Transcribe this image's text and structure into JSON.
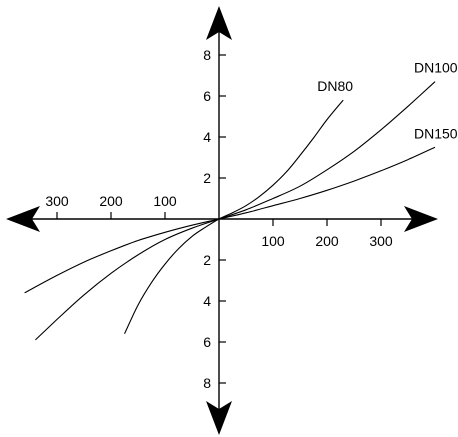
{
  "chart_data": {
    "type": "line",
    "title": "",
    "xlabel": "",
    "ylabel": "",
    "grid": false,
    "xlim": [
      -360,
      400
    ],
    "ylim": [
      -10,
      10
    ],
    "x_tick_labels_positive": [
      "100",
      "200",
      "300"
    ],
    "x_tick_labels_negative": [
      "300",
      "200",
      "100"
    ],
    "y_tick_labels_positive": [
      "2",
      "4",
      "6",
      "8"
    ],
    "y_tick_labels_negative": [
      "2",
      "4",
      "6",
      "8"
    ],
    "series": [
      {
        "name": "DN80",
        "x": [
          -175,
          -150,
          -125,
          -100,
          -75,
          -50,
          -25,
          0,
          25,
          50,
          75,
          100,
          125,
          150,
          175,
          200,
          230
        ],
        "y": [
          -5.6,
          -4.2,
          -3.1,
          -2.2,
          -1.45,
          -0.85,
          -0.4,
          0,
          0.3,
          0.65,
          1.1,
          1.65,
          2.3,
          3.1,
          3.95,
          4.85,
          5.8
        ]
      },
      {
        "name": "DN100",
        "x": [
          -340,
          -300,
          -250,
          -200,
          -150,
          -100,
          -50,
          0,
          50,
          100,
          150,
          200,
          250,
          300,
          350,
          400
        ],
        "y": [
          -5.9,
          -4.9,
          -3.7,
          -2.65,
          -1.75,
          -1.0,
          -0.45,
          0,
          0.45,
          1.0,
          1.6,
          2.4,
          3.3,
          4.35,
          5.5,
          6.7
        ]
      },
      {
        "name": "DN150",
        "x": [
          -360,
          -300,
          -250,
          -200,
          -150,
          -100,
          -50,
          0,
          50,
          100,
          150,
          200,
          250,
          300,
          350,
          400
        ],
        "y": [
          -3.6,
          -2.75,
          -2.1,
          -1.55,
          -1.05,
          -0.65,
          -0.3,
          0,
          0.3,
          0.65,
          1.0,
          1.4,
          1.85,
          2.35,
          2.9,
          3.5
        ]
      }
    ]
  }
}
